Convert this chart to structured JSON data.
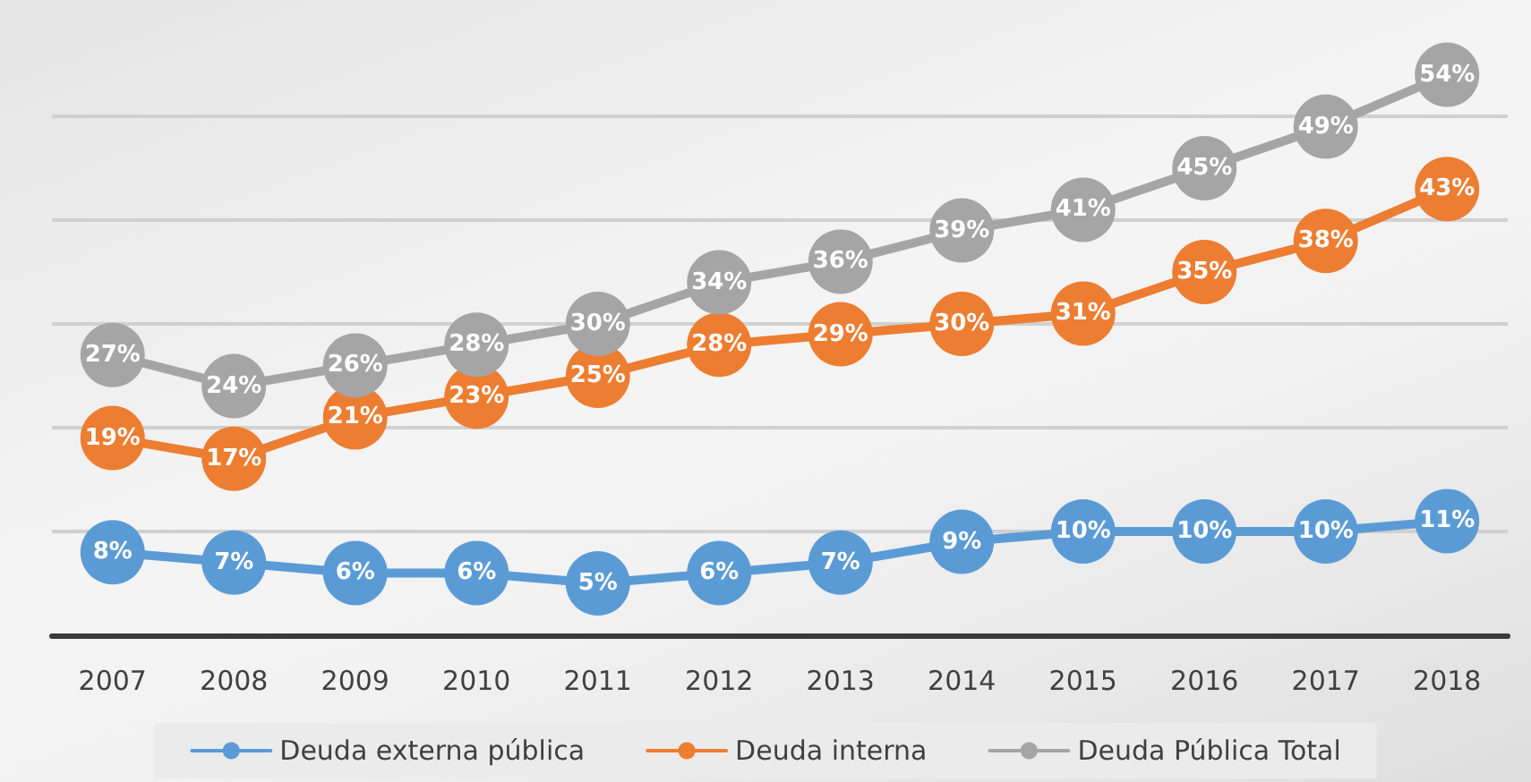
{
  "chart_data": {
    "type": "line",
    "categories": [
      "2007",
      "2008",
      "2009",
      "2010",
      "2011",
      "2012",
      "2013",
      "2014",
      "2015",
      "2016",
      "2017",
      "2018"
    ],
    "series": [
      {
        "name": "Deuda externa pública",
        "color": "#5b9bd5",
        "values": [
          8,
          7,
          6,
          6,
          5,
          6,
          7,
          9,
          10,
          10,
          10,
          11
        ],
        "value_labels": [
          "8%",
          "7%",
          "6%",
          "6%",
          "5%",
          "6%",
          "7%",
          "9%",
          "10%",
          "10%",
          "10%",
          "11%"
        ]
      },
      {
        "name": "Deuda interna",
        "color": "#ed7d31",
        "values": [
          19,
          17,
          21,
          23,
          25,
          28,
          29,
          30,
          31,
          35,
          38,
          43
        ],
        "value_labels": [
          "19%",
          "17%",
          "21%",
          "23%",
          "25%",
          "28%",
          "29%",
          "30%",
          "31%",
          "35%",
          "38%",
          "43%"
        ]
      },
      {
        "name": "Deuda Pública Total",
        "color": "#a5a5a5",
        "values": [
          27,
          24,
          26,
          28,
          30,
          34,
          36,
          39,
          41,
          45,
          49,
          54
        ],
        "value_labels": [
          "27%",
          "24%",
          "26%",
          "28%",
          "30%",
          "34%",
          "36%",
          "39%",
          "41%",
          "45%",
          "49%",
          "54%"
        ]
      }
    ],
    "yticks": [
      {
        "value": 0,
        "label": null
      },
      {
        "value": 10,
        "label": null
      },
      {
        "value": 20,
        "label": null
      },
      {
        "value": 30,
        "label": null
      },
      {
        "value": 40,
        "label": null
      },
      {
        "value": 50,
        "label": null
      }
    ],
    "tick_labels": "x",
    "grid": "y",
    "legend": "bottom",
    "marker": "circle",
    "line_style": "solid"
  }
}
